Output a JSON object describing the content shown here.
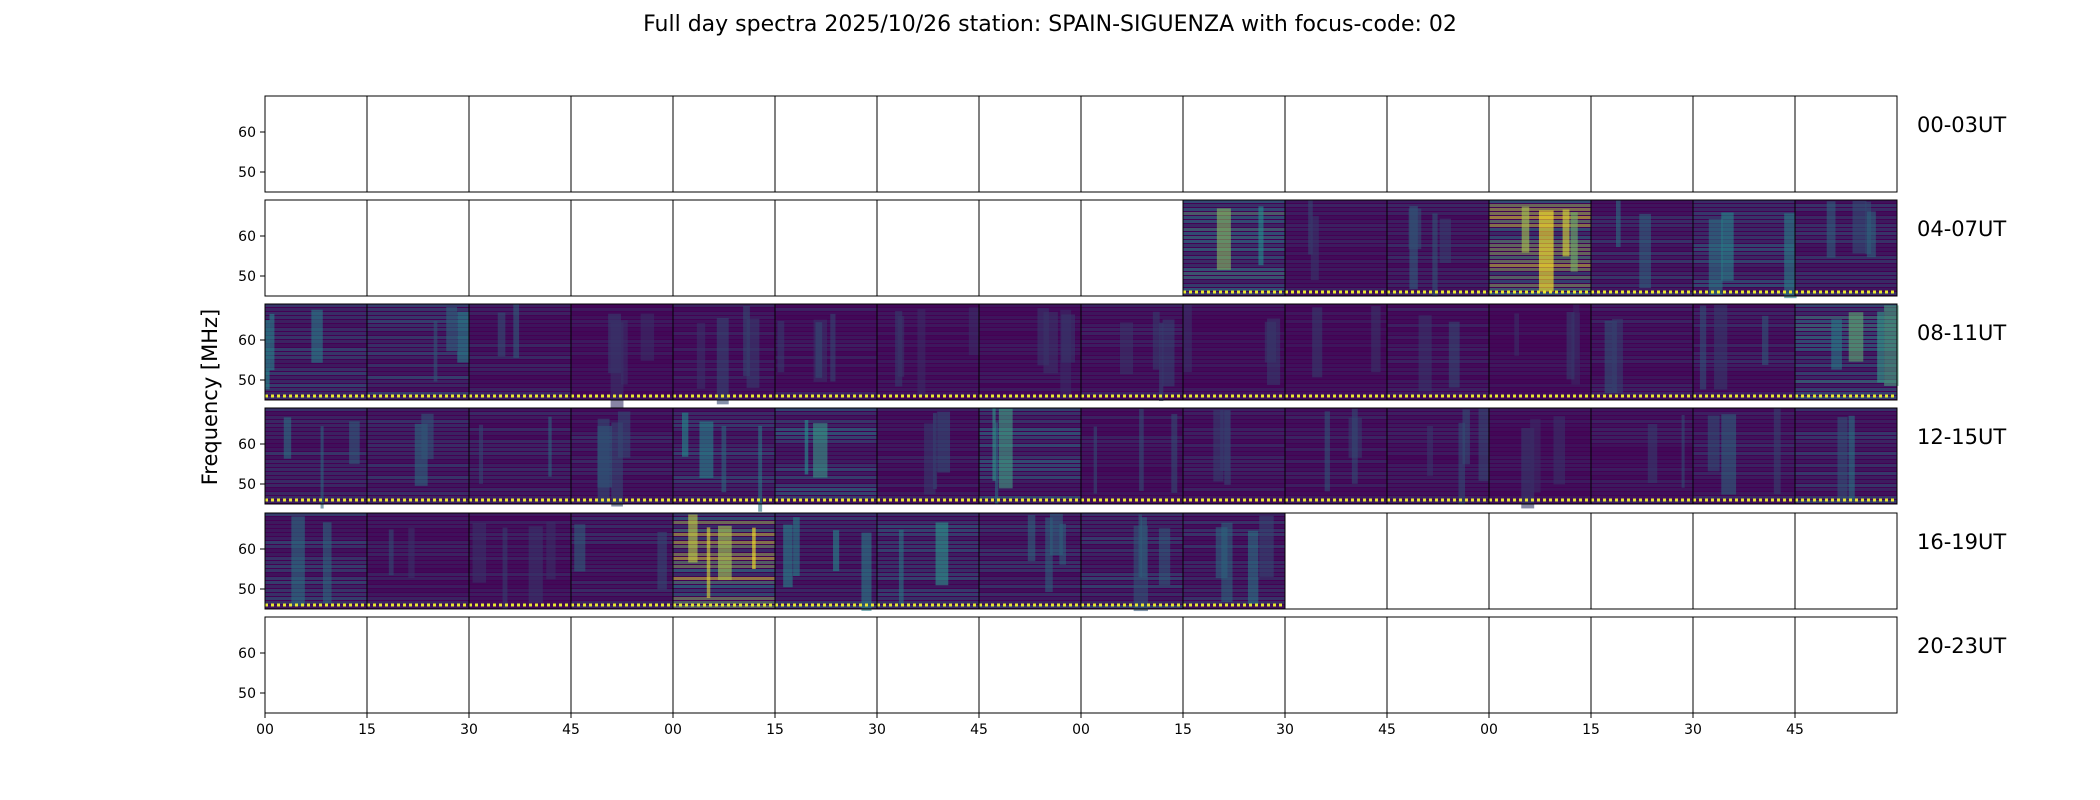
{
  "chart_data": {
    "type": "heatmap",
    "title": "Full day spectra 2025/10/26 station: SPAIN-SIGUENZA with focus-code: 02",
    "ylabel": "Frequency [MHz]",
    "xlabel": "",
    "ylim": [
      45,
      69
    ],
    "yticks": [
      "60",
      "50"
    ],
    "x_tick_labels": [
      "00",
      "15",
      "30",
      "45",
      "00",
      "15",
      "30",
      "45",
      "00",
      "15",
      "30",
      "45",
      "00",
      "15",
      "30",
      "45"
    ],
    "colormap": "viridis",
    "colors": {
      "low": "#440154",
      "mid": "#21908d",
      "high": "#fde725",
      "flag": "#e8e830"
    },
    "panels_per_row": 16,
    "minutes_per_panel": 15,
    "rows": [
      {
        "label": "00-03UT",
        "has_data": [
          0,
          0,
          0,
          0,
          0,
          0,
          0,
          0,
          0,
          0,
          0,
          0,
          0,
          0,
          0,
          0
        ]
      },
      {
        "label": "04-07UT",
        "has_data": [
          0,
          0,
          0,
          0,
          0,
          0,
          0,
          0,
          0,
          1,
          1,
          1,
          1,
          1,
          1,
          1
        ]
      },
      {
        "label": "08-11UT",
        "has_data": [
          1,
          1,
          1,
          1,
          1,
          1,
          1,
          1,
          1,
          1,
          1,
          1,
          1,
          1,
          1,
          1
        ]
      },
      {
        "label": "12-15UT",
        "has_data": [
          1,
          1,
          1,
          1,
          1,
          1,
          1,
          1,
          1,
          1,
          1,
          1,
          1,
          1,
          1,
          1
        ]
      },
      {
        "label": "16-19UT",
        "has_data": [
          1,
          1,
          1,
          1,
          1,
          1,
          1,
          1,
          1,
          1,
          0,
          0,
          0,
          0,
          0,
          0
        ]
      },
      {
        "label": "20-23UT",
        "has_data": [
          0,
          0,
          0,
          0,
          0,
          0,
          0,
          0,
          0,
          0,
          0,
          0,
          0,
          0,
          0,
          0
        ]
      }
    ],
    "intensity_level": [
      [
        0,
        0,
        0,
        0,
        0,
        0,
        0,
        0,
        0,
        0,
        0,
        0,
        0,
        0,
        0,
        0
      ],
      [
        0,
        0,
        0,
        0,
        0,
        0,
        0,
        0,
        0,
        0.55,
        0.2,
        0.25,
        0.85,
        0.3,
        0.4,
        0.3
      ],
      [
        0.35,
        0.35,
        0.25,
        0.15,
        0.2,
        0.2,
        0.15,
        0.15,
        0.2,
        0.15,
        0.15,
        0.2,
        0.15,
        0.2,
        0.25,
        0.5
      ],
      [
        0.3,
        0.3,
        0.25,
        0.25,
        0.35,
        0.45,
        0.2,
        0.45,
        0.2,
        0.2,
        0.2,
        0.2,
        0.15,
        0.2,
        0.25,
        0.35
      ],
      [
        0.35,
        0.2,
        0.2,
        0.25,
        0.85,
        0.35,
        0.4,
        0.3,
        0.35,
        0.3,
        0,
        0,
        0,
        0,
        0,
        0
      ],
      [
        0,
        0,
        0,
        0,
        0,
        0,
        0,
        0,
        0,
        0,
        0,
        0,
        0,
        0,
        0,
        0
      ]
    ]
  }
}
